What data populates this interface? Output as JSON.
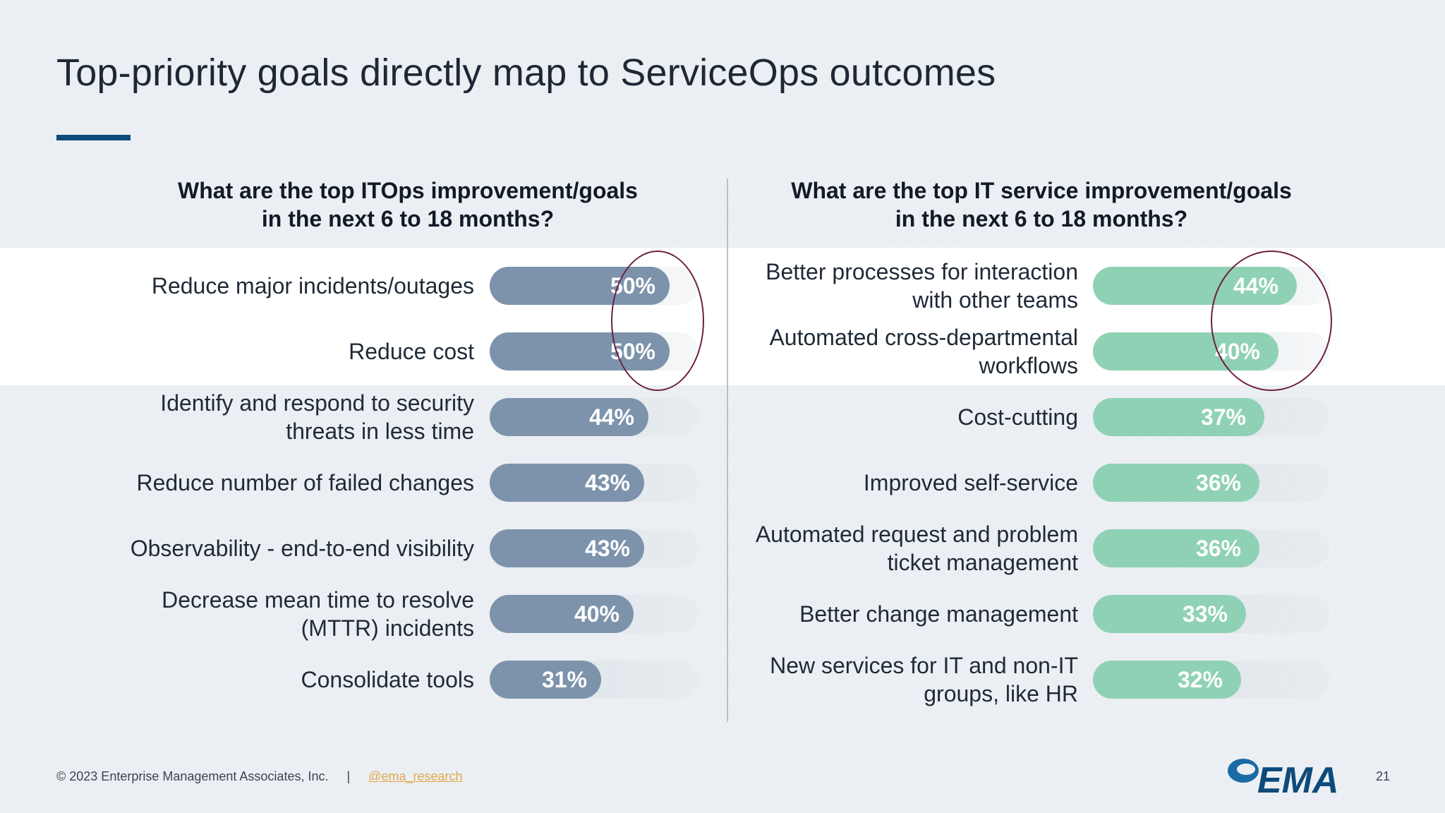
{
  "slide": {
    "title": "Top-priority goals directly map to ServiceOps outcomes",
    "footer": {
      "copyright": "© 2023 Enterprise Management Associates, Inc.",
      "separator": "|",
      "link": "@ema_research",
      "page": "21"
    },
    "logo_text": "EMA",
    "colors": {
      "accent": "#0e4a7b",
      "left_bar": "#7d93ab",
      "right_bar": "#8fd1b4",
      "highlight_ring": "#6e1f45",
      "footer_link": "#e3a84a"
    }
  },
  "chart_data": [
    {
      "type": "bar",
      "orientation": "horizontal",
      "title": "What are the top ITOps improvement/goals in the next 6 to 18 months?",
      "title_lines": [
        "What are the top ITOps improvement/goals",
        "in the next 6 to 18 months?"
      ],
      "categories": [
        [
          "Reduce major incidents/outages"
        ],
        [
          "Reduce cost"
        ],
        [
          "Identify and respond to security",
          "threats in less time"
        ],
        [
          "Reduce number of failed changes"
        ],
        [
          "Observability - end-to-end visibility"
        ],
        [
          "Decrease mean time to resolve",
          "(MTTR) incidents"
        ],
        [
          "Consolidate tools"
        ]
      ],
      "values": [
        50,
        50,
        44,
        43,
        43,
        40,
        31
      ],
      "value_labels": [
        "50%",
        "50%",
        "44%",
        "43%",
        "43%",
        "40%",
        "31%"
      ],
      "unit": "%",
      "xlim": [
        0,
        58
      ],
      "highlighted": [
        0,
        1
      ]
    },
    {
      "type": "bar",
      "orientation": "horizontal",
      "title": "What are the top IT service improvement/goals in the next 6 to 18 months?",
      "title_lines": [
        "What are the top IT service improvement/goals",
        "in the next 6 to 18 months?"
      ],
      "categories": [
        [
          "Better processes for interaction",
          "with other teams"
        ],
        [
          "Automated cross-departmental",
          "workflows"
        ],
        [
          "Cost-cutting"
        ],
        [
          "Improved self-service"
        ],
        [
          "Automated request and problem",
          "ticket management"
        ],
        [
          "Better change management"
        ],
        [
          "New services for IT and non-IT",
          "groups, like HR"
        ]
      ],
      "values": [
        44,
        40,
        37,
        36,
        36,
        33,
        32
      ],
      "value_labels": [
        "44%",
        "40%",
        "37%",
        "36%",
        "36%",
        "33%",
        "32%"
      ],
      "unit": "%",
      "xlim": [
        0,
        51
      ],
      "highlighted": [
        0,
        1
      ]
    }
  ]
}
